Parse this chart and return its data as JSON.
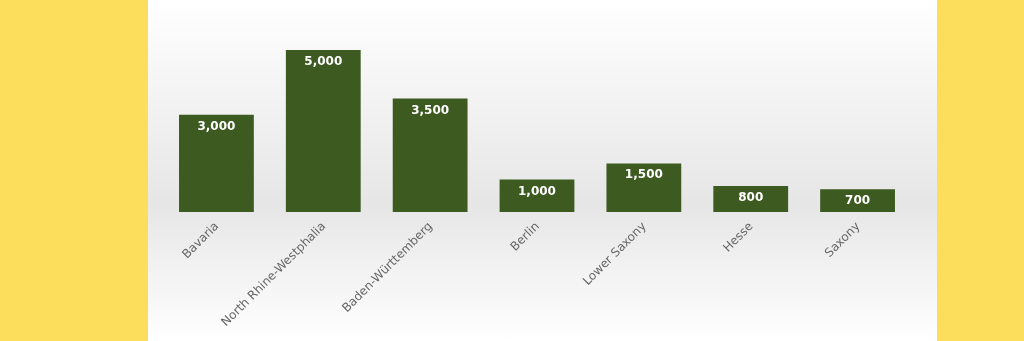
{
  "chart_data": {
    "type": "bar",
    "categories": [
      "Bavaria",
      "North Rhine-Westphalia",
      "Baden-Württemberg",
      "Berlin",
      "Lower Saxony",
      "Hesse",
      "Saxony"
    ],
    "values": [
      3000,
      5000,
      3500,
      1000,
      1500,
      800,
      700
    ],
    "value_labels": [
      "3,000",
      "5,000",
      "3,500",
      "1,000",
      "1,500",
      "800",
      "700"
    ],
    "color": "#3d5a21"
  }
}
